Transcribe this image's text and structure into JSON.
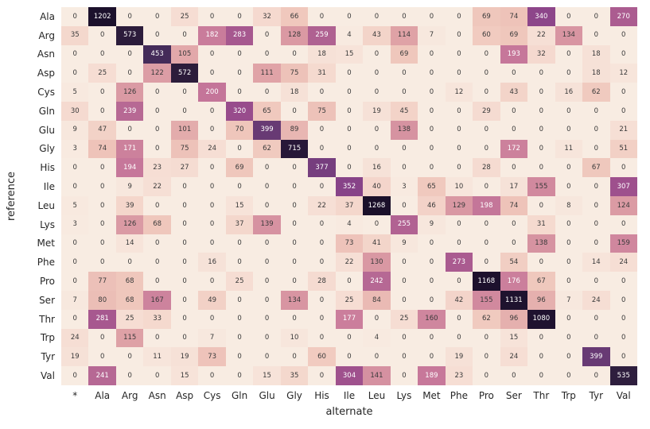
{
  "chart_data": {
    "type": "heatmap",
    "title": "",
    "xlabel": "alternate",
    "ylabel": "reference",
    "legend": "none",
    "grid": false,
    "annotations_shown": true,
    "vmin": 0,
    "vmax": 1268,
    "columns": [
      "*",
      "Ala",
      "Arg",
      "Asn",
      "Asp",
      "Cys",
      "Gln",
      "Glu",
      "Gly",
      "His",
      "Ile",
      "Leu",
      "Lys",
      "Met",
      "Phe",
      "Pro",
      "Ser",
      "Thr",
      "Trp",
      "Tyr",
      "Val"
    ],
    "rows": [
      "Ala",
      "Arg",
      "Asn",
      "Asp",
      "Cys",
      "Gln",
      "Glu",
      "Gly",
      "His",
      "Ile",
      "Leu",
      "Lys",
      "Met",
      "Phe",
      "Pro",
      "Ser",
      "Thr",
      "Trp",
      "Tyr",
      "Val"
    ],
    "values": [
      [
        0,
        1202,
        0,
        0,
        25,
        0,
        0,
        32,
        66,
        0,
        0,
        0,
        0,
        0,
        0,
        69,
        74,
        340,
        0,
        0,
        270
      ],
      [
        35,
        0,
        573,
        0,
        0,
        182,
        283,
        0,
        128,
        259,
        4,
        43,
        114,
        7,
        0,
        60,
        69,
        22,
        134,
        0,
        0
      ],
      [
        0,
        0,
        0,
        453,
        105,
        0,
        0,
        0,
        0,
        18,
        15,
        0,
        69,
        0,
        0,
        0,
        193,
        32,
        0,
        18,
        0
      ],
      [
        0,
        25,
        0,
        122,
        572,
        0,
        0,
        111,
        75,
        31,
        0,
        0,
        0,
        0,
        0,
        0,
        0,
        0,
        0,
        18,
        12
      ],
      [
        5,
        0,
        126,
        0,
        0,
        200,
        0,
        0,
        18,
        0,
        0,
        0,
        0,
        0,
        12,
        0,
        43,
        0,
        16,
        62,
        0
      ],
      [
        30,
        0,
        239,
        0,
        0,
        0,
        320,
        65,
        0,
        75,
        0,
        19,
        45,
        0,
        0,
        29,
        0,
        0,
        0,
        0,
        0
      ],
      [
        9,
        47,
        0,
        0,
        101,
        0,
        70,
        399,
        89,
        0,
        0,
        0,
        138,
        0,
        0,
        0,
        0,
        0,
        0,
        0,
        21
      ],
      [
        3,
        74,
        171,
        0,
        75,
        24,
        0,
        62,
        715,
        0,
        0,
        0,
        0,
        0,
        0,
        0,
        172,
        0,
        11,
        0,
        51
      ],
      [
        0,
        0,
        194,
        23,
        27,
        0,
        69,
        0,
        0,
        377,
        0,
        16,
        0,
        0,
        0,
        28,
        0,
        0,
        0,
        67,
        0
      ],
      [
        0,
        0,
        9,
        22,
        0,
        0,
        0,
        0,
        0,
        0,
        352,
        40,
        3,
        65,
        10,
        0,
        17,
        155,
        0,
        0,
        307
      ],
      [
        5,
        0,
        39,
        0,
        0,
        0,
        15,
        0,
        0,
        22,
        37,
        1268,
        0,
        46,
        129,
        198,
        74,
        0,
        8,
        0,
        124
      ],
      [
        3,
        0,
        126,
        68,
        0,
        0,
        37,
        139,
        0,
        0,
        4,
        0,
        255,
        9,
        0,
        0,
        0,
        31,
        0,
        0,
        0
      ],
      [
        0,
        0,
        14,
        0,
        0,
        0,
        0,
        0,
        0,
        0,
        73,
        41,
        9,
        0,
        0,
        0,
        0,
        138,
        0,
        0,
        159
      ],
      [
        0,
        0,
        0,
        0,
        0,
        16,
        0,
        0,
        0,
        0,
        22,
        130,
        0,
        0,
        273,
        0,
        54,
        0,
        0,
        14,
        24
      ],
      [
        0,
        77,
        68,
        0,
        0,
        0,
        25,
        0,
        0,
        28,
        0,
        242,
        0,
        0,
        0,
        1168,
        176,
        67,
        0,
        0,
        0
      ],
      [
        7,
        80,
        68,
        167,
        0,
        49,
        0,
        0,
        134,
        0,
        25,
        84,
        0,
        0,
        42,
        155,
        1131,
        96,
        7,
        24,
        0
      ],
      [
        0,
        281,
        25,
        33,
        0,
        0,
        0,
        0,
        0,
        0,
        177,
        0,
        25,
        160,
        0,
        62,
        96,
        1080,
        0,
        0,
        0
      ],
      [
        24,
        0,
        115,
        0,
        0,
        7,
        0,
        0,
        10,
        0,
        0,
        4,
        0,
        0,
        0,
        0,
        15,
        0,
        0,
        0,
        0
      ],
      [
        19,
        0,
        0,
        11,
        19,
        73,
        0,
        0,
        0,
        60,
        0,
        0,
        0,
        0,
        19,
        0,
        24,
        0,
        0,
        399,
        0
      ],
      [
        0,
        241,
        0,
        0,
        15,
        0,
        0,
        15,
        35,
        0,
        304,
        141,
        0,
        189,
        23,
        0,
        0,
        0,
        0,
        0,
        535
      ]
    ],
    "colormap_stops": [
      [
        0,
        "#f8ece2"
      ],
      [
        30,
        "#f5dad0"
      ],
      [
        70,
        "#efc6bb"
      ],
      [
        110,
        "#e0a4a7"
      ],
      [
        150,
        "#d28b9f"
      ],
      [
        190,
        "#c7789a"
      ],
      [
        230,
        "#ba6d95"
      ],
      [
        270,
        "#ab5c90"
      ],
      [
        310,
        "#9d4f8d"
      ],
      [
        350,
        "#884389"
      ],
      [
        400,
        "#673a74"
      ],
      [
        455,
        "#432a58"
      ],
      [
        540,
        "#2d1d3c"
      ],
      [
        760,
        "#261637"
      ],
      [
        1268,
        "#1b102a"
      ]
    ],
    "annot_dark_color": "#3a3a3a",
    "annot_light_color": "#ffffff",
    "annot_light_threshold": 169
  }
}
